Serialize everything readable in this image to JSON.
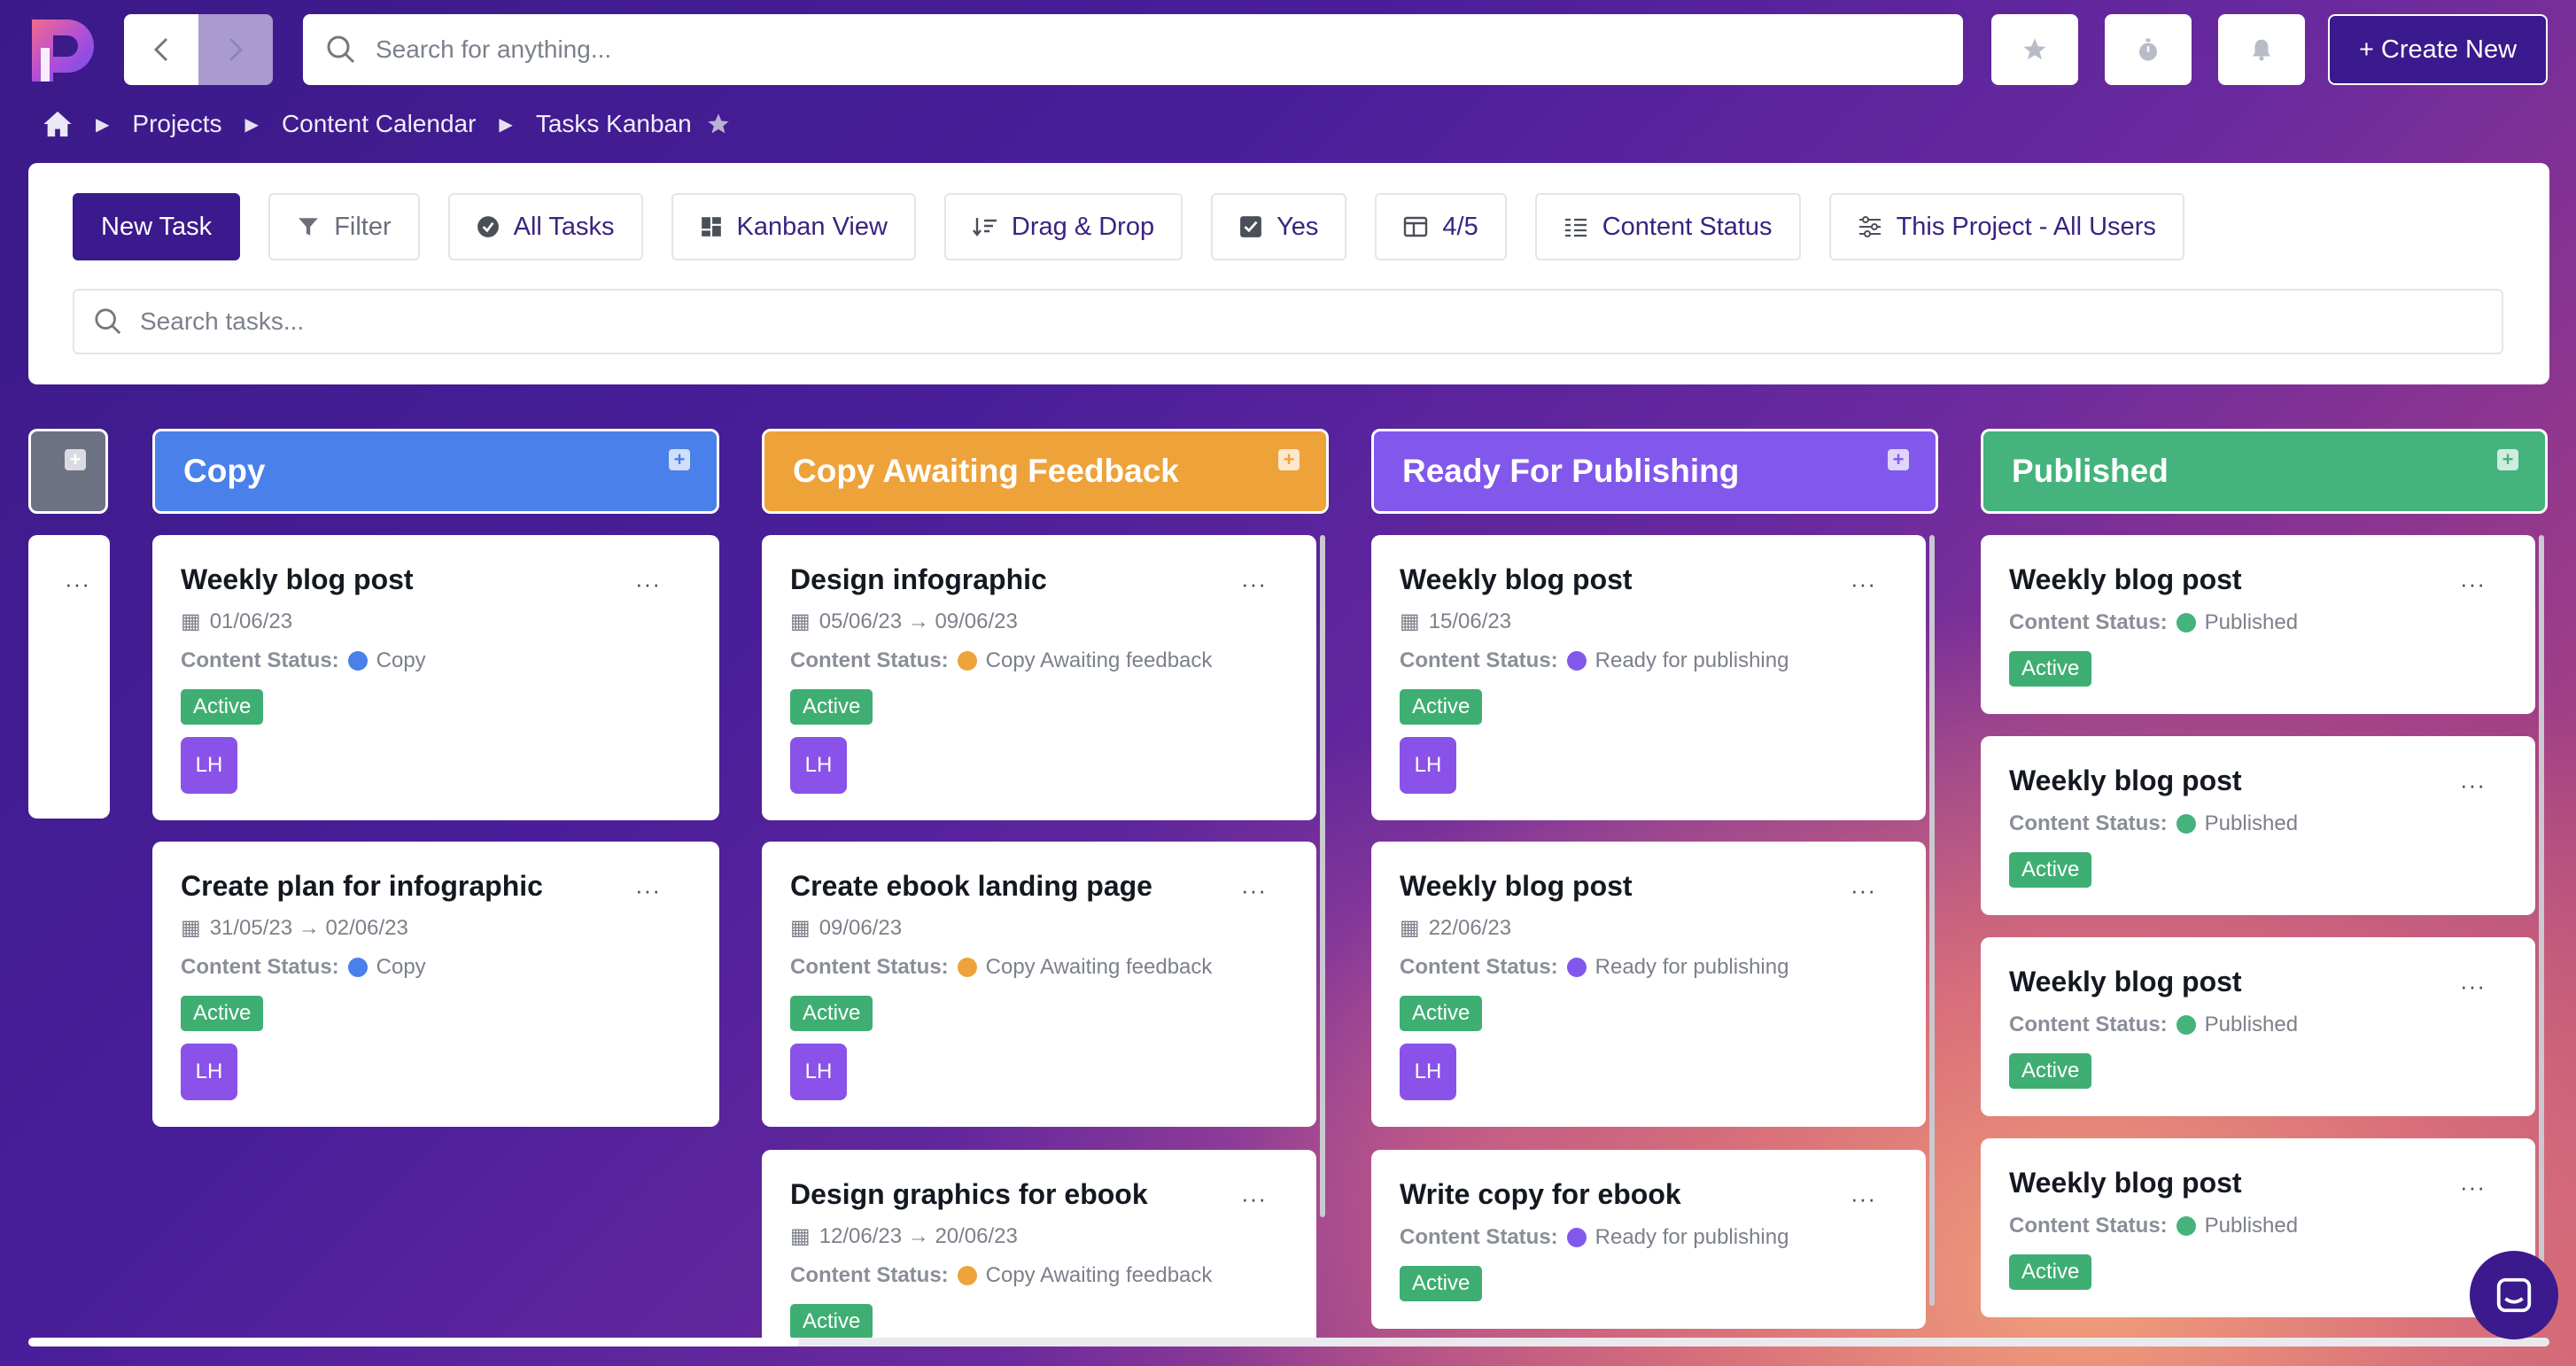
{
  "top": {
    "search_placeholder": "Search for anything...",
    "create_label": "+ Create New"
  },
  "breadcrumb": {
    "items": [
      "Projects",
      "Content Calendar",
      "Tasks Kanban"
    ]
  },
  "toolbar": {
    "new_task": "New Task",
    "filter": "Filter",
    "all_tasks": "All Tasks",
    "kanban_view": "Kanban View",
    "drag_drop": "Drag & Drop",
    "yes": "Yes",
    "columns": "4/5",
    "content_status": "Content Status",
    "scope": "This Project - All Users",
    "search_placeholder": "Search tasks..."
  },
  "status_label": "Content Status:",
  "columns": [
    {
      "name": "Copy",
      "color": "#4a80ea",
      "cards": [
        {
          "title": "Weekly blog post",
          "date": "01/06/23",
          "status": "Copy",
          "badge": "Active",
          "avatar": "LH"
        },
        {
          "title": "Create plan for infographic",
          "date": "31/05/23 → 02/06/23",
          "status": "Copy",
          "badge": "Active",
          "avatar": "LH"
        }
      ]
    },
    {
      "name": "Copy Awaiting Feedback",
      "color": "#eea23a",
      "cards": [
        {
          "title": "Design infographic",
          "date": "05/06/23 → 09/06/23",
          "status": "Copy Awaiting feedback",
          "badge": "Active",
          "avatar": "LH"
        },
        {
          "title": "Create ebook landing page",
          "date": "09/06/23",
          "status": "Copy Awaiting feedback",
          "badge": "Active",
          "avatar": "LH"
        },
        {
          "title": "Design graphics for ebook",
          "date": "12/06/23 → 20/06/23",
          "status": "Copy Awaiting feedback",
          "badge": "Active"
        }
      ]
    },
    {
      "name": "Ready For Publishing",
      "color": "#8258ec",
      "cards": [
        {
          "title": "Weekly blog post",
          "date": "15/06/23",
          "status": "Ready for publishing",
          "badge": "Active",
          "avatar": "LH"
        },
        {
          "title": "Weekly blog post",
          "date": "22/06/23",
          "status": "Ready for publishing",
          "badge": "Active",
          "avatar": "LH"
        },
        {
          "title": "Write copy for ebook",
          "status": "Ready for publishing",
          "badge": "Active"
        }
      ]
    },
    {
      "name": "Published",
      "color": "#45b37c",
      "cards": [
        {
          "title": "Weekly blog post",
          "status": "Published",
          "badge": "Active"
        },
        {
          "title": "Weekly blog post",
          "status": "Published",
          "badge": "Active"
        },
        {
          "title": "Weekly blog post",
          "status": "Published",
          "badge": "Active"
        },
        {
          "title": "Weekly blog post",
          "status": "Published",
          "badge": "Active"
        }
      ]
    }
  ],
  "colors": {
    "brand": "#3a1a8c",
    "active_badge": "#3fae72",
    "avatar": "#8a52e8",
    "dot_copy": "#4a80ea",
    "dot_feedback": "#eea23a",
    "dot_ready": "#8258ec",
    "dot_published": "#45b37c"
  }
}
